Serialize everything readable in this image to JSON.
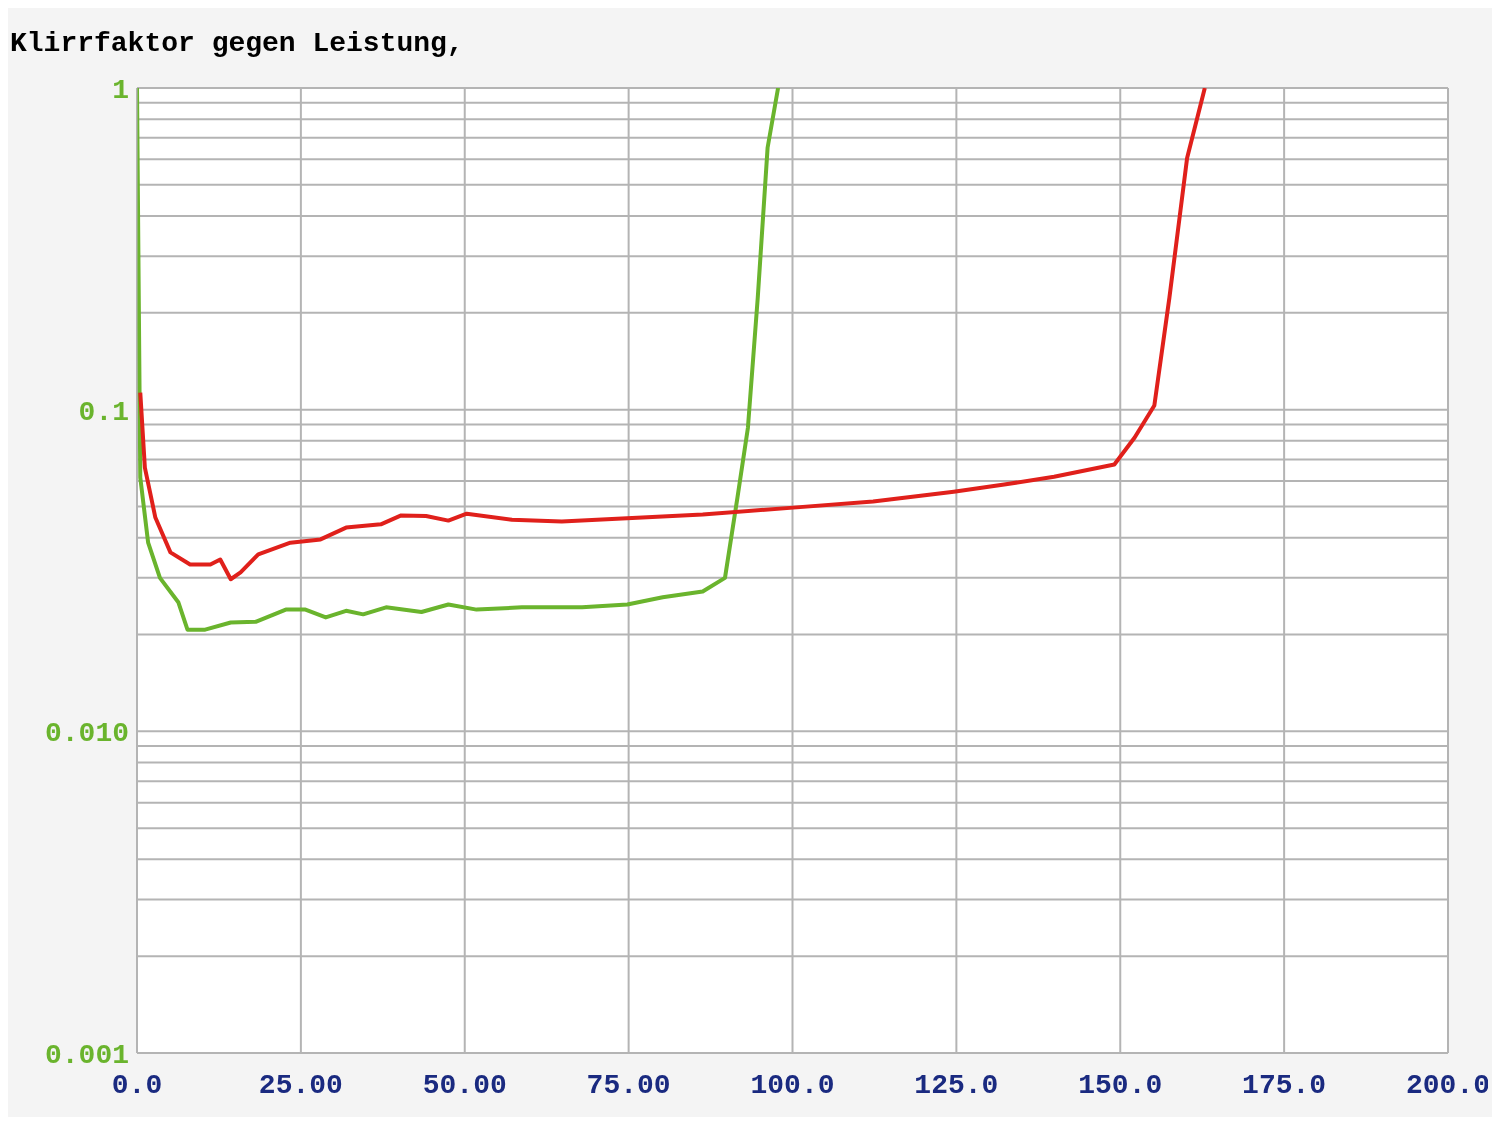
{
  "chart_data": {
    "type": "line",
    "title": "Klirrfaktor gegen Leistung,",
    "xlim": [
      0,
      200
    ],
    "xticks": [
      {
        "value": 0,
        "label": "0.0"
      },
      {
        "value": 25,
        "label": "25.00"
      },
      {
        "value": 50,
        "label": "50.00"
      },
      {
        "value": 75,
        "label": "75.00"
      },
      {
        "value": 100,
        "label": "100.0"
      },
      {
        "value": 125,
        "label": "125.0"
      },
      {
        "value": 150,
        "label": "150.0"
      },
      {
        "value": 175,
        "label": "175.0"
      },
      {
        "value": 200,
        "label": "200.0"
      }
    ],
    "ylim": [
      0.001,
      1
    ],
    "log": "y",
    "grid": true,
    "line_style": "solid",
    "marker": "none",
    "yticks": [
      {
        "value": 0.001,
        "label": "0.001"
      },
      {
        "value": 0.002,
        "label": null
      },
      {
        "value": 0.003,
        "label": null
      },
      {
        "value": 0.004,
        "label": null
      },
      {
        "value": 0.005,
        "label": null
      },
      {
        "value": 0.006,
        "label": null
      },
      {
        "value": 0.007,
        "label": null
      },
      {
        "value": 0.008,
        "label": null
      },
      {
        "value": 0.009,
        "label": null
      },
      {
        "value": 0.01,
        "label": "0.010"
      },
      {
        "value": 0.02,
        "label": null
      },
      {
        "value": 0.03,
        "label": null
      },
      {
        "value": 0.04,
        "label": null
      },
      {
        "value": 0.05,
        "label": null
      },
      {
        "value": 0.06,
        "label": null
      },
      {
        "value": 0.07,
        "label": null
      },
      {
        "value": 0.08,
        "label": null
      },
      {
        "value": 0.09,
        "label": null
      },
      {
        "value": 0.1,
        "label": "0.1"
      },
      {
        "value": 0.2,
        "label": null
      },
      {
        "value": 0.3,
        "label": null
      },
      {
        "value": 0.4,
        "label": null
      },
      {
        "value": 0.5,
        "label": null
      },
      {
        "value": 0.6,
        "label": null
      },
      {
        "value": 0.7,
        "label": null
      },
      {
        "value": 0.8,
        "label": null
      },
      {
        "value": 0.9,
        "label": null
      },
      {
        "value": 1,
        "label": "1"
      }
    ],
    "series": [
      {
        "color": "#6ab42d",
        "x": [
          0,
          0.5,
          1.7,
          3.5,
          6.3,
          7.7,
          10.4,
          14.3,
          18.1,
          22.7,
          25.7,
          28.8,
          31.9,
          34.5,
          38,
          43.4,
          47.5,
          51.8,
          58.7,
          67.9,
          74.8,
          80.2,
          86.3,
          89.7,
          91.6,
          93.2,
          94.7,
          96.2,
          97.8
        ],
        "values": [
          1,
          0.0615,
          0.0386,
          0.03,
          0.0252,
          0.0207,
          0.0207,
          0.0218,
          0.0219,
          0.0239,
          0.0239,
          0.0226,
          0.0237,
          0.0231,
          0.0243,
          0.0235,
          0.0248,
          0.0239,
          0.0243,
          0.0243,
          0.0248,
          0.0261,
          0.0272,
          0.03,
          0.0533,
          0.0879,
          0.223,
          0.652,
          1
        ]
      },
      {
        "color": "#e0201b",
        "x": [
          0.5,
          1.2,
          2.8,
          5.1,
          8.1,
          11.2,
          12.7,
          14.3,
          15.8,
          18.5,
          23.4,
          28,
          31.9,
          37.2,
          40.3,
          44.1,
          47.5,
          50.3,
          57.2,
          64.8,
          74,
          86.3,
          100.1,
          112.3,
          124.6,
          132.3,
          139.9,
          149.1,
          152.2,
          155.2,
          157.5,
          160.2,
          162.9
        ],
        "values": [
          0.113,
          0.066,
          0.0462,
          0.036,
          0.033,
          0.033,
          0.0342,
          0.0297,
          0.0312,
          0.0355,
          0.0386,
          0.0395,
          0.043,
          0.044,
          0.0469,
          0.0467,
          0.0452,
          0.0475,
          0.0455,
          0.0449,
          0.0459,
          0.0472,
          0.0496,
          0.0518,
          0.0556,
          0.0585,
          0.0619,
          0.0675,
          0.0819,
          0.103,
          0.223,
          0.606,
          1
        ]
      }
    ]
  }
}
